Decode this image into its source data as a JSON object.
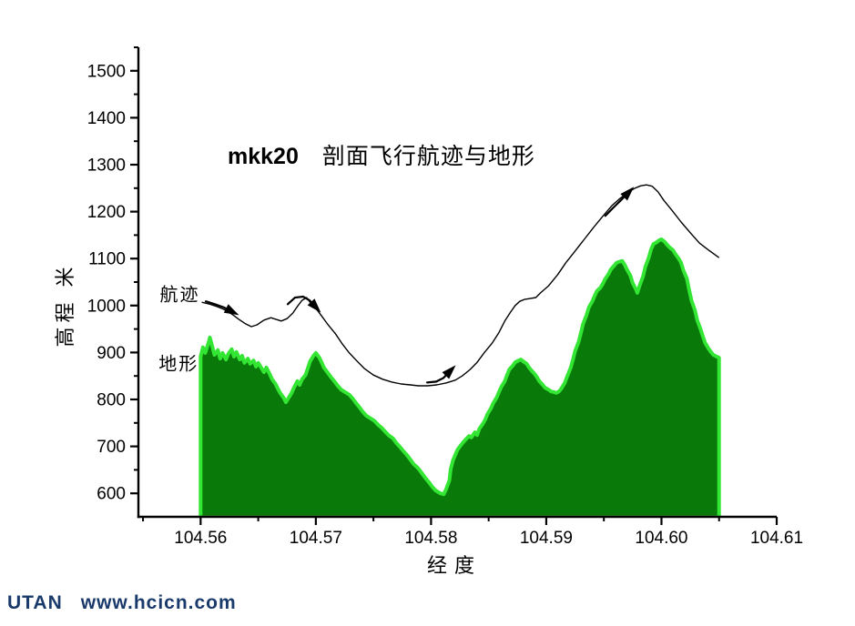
{
  "watermark": {
    "brand": "UTAN",
    "url": "www.hcicn.com",
    "color": "#1A3A6B"
  },
  "chart_data": {
    "type": "area",
    "title": "mkk20 剖面飞行航迹与地形",
    "title_parts": [
      "mkk20",
      "剖面飞行航迹与地形"
    ],
    "grid": false,
    "legend": "none (inline annotations)",
    "x_axis": {
      "label": "经度",
      "range": [
        104.5546,
        104.61
      ],
      "major_ticks": [
        104.56,
        104.57,
        104.58,
        104.59,
        104.6,
        104.61
      ],
      "tick_labels": [
        "104.56",
        "104.57",
        "104.58",
        "104.59",
        "104.60",
        "104.61"
      ],
      "minor_ticks": [
        104.555,
        104.565,
        104.575,
        104.585,
        104.595,
        104.605
      ]
    },
    "y_axis": {
      "label": "高程 米",
      "range": [
        550,
        1550
      ],
      "major_ticks": [
        600,
        700,
        800,
        900,
        1000,
        1100,
        1200,
        1300,
        1400,
        1500
      ],
      "tick_labels": [
        "600",
        "700",
        "800",
        "900",
        "1000",
        "1100",
        "1200",
        "1300",
        "1400",
        "1500"
      ],
      "minor_ticks": [
        650,
        750,
        850,
        950,
        1050,
        1150,
        1250,
        1350,
        1450,
        1550
      ]
    },
    "colors": {
      "terrain_fill": "#097A09",
      "terrain_edge": "#33E633",
      "trajectory": "#000000",
      "axis": "#000000"
    },
    "annotations": [
      {
        "text": "航迹",
        "lon": 104.5582,
        "elev": 1027
      },
      {
        "text": "地形",
        "lon": 104.5581,
        "elev": 879
      }
    ],
    "series": [
      {
        "name": "地形",
        "type": "area",
        "fill": "#097A09",
        "edge": "#33E633",
        "points": [
          [
            104.56,
            891
          ],
          [
            104.5602,
            911
          ],
          [
            104.5604,
            899
          ],
          [
            104.5607,
            922
          ],
          [
            104.5608,
            932
          ],
          [
            104.561,
            914
          ],
          [
            104.5612,
            895
          ],
          [
            104.5615,
            905
          ],
          [
            104.5617,
            887
          ],
          [
            104.5619,
            899
          ],
          [
            104.5622,
            885
          ],
          [
            104.5624,
            897
          ],
          [
            104.5627,
            907
          ],
          [
            104.5629,
            891
          ],
          [
            104.5631,
            901
          ],
          [
            104.5634,
            885
          ],
          [
            104.5636,
            893
          ],
          [
            104.5638,
            878
          ],
          [
            104.5641,
            887
          ],
          [
            104.5643,
            876
          ],
          [
            104.5646,
            883
          ],
          [
            104.5648,
            870
          ],
          [
            104.565,
            878
          ],
          [
            104.5653,
            866
          ],
          [
            104.5655,
            858
          ],
          [
            104.5657,
            868
          ],
          [
            104.566,
            854
          ],
          [
            104.5662,
            843
          ],
          [
            104.5665,
            833
          ],
          [
            104.5667,
            823
          ],
          [
            104.5669,
            814
          ],
          [
            104.5672,
            804
          ],
          [
            104.5674,
            794
          ],
          [
            104.5676,
            802
          ],
          [
            104.5679,
            814
          ],
          [
            104.5681,
            825
          ],
          [
            104.5684,
            839
          ],
          [
            104.5686,
            831
          ],
          [
            104.5688,
            843
          ],
          [
            104.5691,
            852
          ],
          [
            104.5693,
            866
          ],
          [
            104.5695,
            881
          ],
          [
            104.5698,
            893
          ],
          [
            104.57,
            899
          ],
          [
            104.5703,
            889
          ],
          [
            104.5705,
            879
          ],
          [
            104.5707,
            868
          ],
          [
            104.571,
            858
          ],
          [
            104.5713,
            848
          ],
          [
            104.5716,
            839
          ],
          [
            104.5719,
            829
          ],
          [
            104.5722,
            821
          ],
          [
            104.5725,
            816
          ],
          [
            104.5729,
            810
          ],
          [
            104.5732,
            802
          ],
          [
            104.5735,
            792
          ],
          [
            104.5738,
            783
          ],
          [
            104.5741,
            773
          ],
          [
            104.5744,
            765
          ],
          [
            104.5748,
            759
          ],
          [
            104.5751,
            754
          ],
          [
            104.5754,
            746
          ],
          [
            104.5757,
            740
          ],
          [
            104.576,
            732
          ],
          [
            104.5763,
            724
          ],
          [
            104.5767,
            717
          ],
          [
            104.577,
            707
          ],
          [
            104.5773,
            699
          ],
          [
            104.5776,
            690
          ],
          [
            104.5779,
            682
          ],
          [
            104.5782,
            672
          ],
          [
            104.5785,
            662
          ],
          [
            104.5789,
            653
          ],
          [
            104.5792,
            643
          ],
          [
            104.5795,
            633
          ],
          [
            104.5798,
            624
          ],
          [
            104.5801,
            614
          ],
          [
            104.5804,
            606
          ],
          [
            104.5808,
            600
          ],
          [
            104.5811,
            598
          ],
          [
            104.5813,
            608
          ],
          [
            104.5816,
            628
          ],
          [
            104.5817,
            651
          ],
          [
            104.5819,
            670
          ],
          [
            104.5821,
            682
          ],
          [
            104.5823,
            693
          ],
          [
            104.5826,
            703
          ],
          [
            104.5828,
            709
          ],
          [
            104.5831,
            717
          ],
          [
            104.5833,
            722
          ],
          [
            104.5835,
            719
          ],
          [
            104.5838,
            730
          ],
          [
            104.584,
            724
          ],
          [
            104.5842,
            738
          ],
          [
            104.5845,
            748
          ],
          [
            104.5847,
            757
          ],
          [
            104.5849,
            769
          ],
          [
            104.5852,
            781
          ],
          [
            104.5854,
            792
          ],
          [
            104.5857,
            804
          ],
          [
            104.5859,
            816
          ],
          [
            104.5861,
            827
          ],
          [
            104.5864,
            839
          ],
          [
            104.5866,
            852
          ],
          [
            104.5868,
            864
          ],
          [
            104.5871,
            872
          ],
          [
            104.5873,
            879
          ],
          [
            104.5876,
            883
          ],
          [
            104.5878,
            885
          ],
          [
            104.588,
            881
          ],
          [
            104.5883,
            876
          ],
          [
            104.5885,
            868
          ],
          [
            104.5887,
            862
          ],
          [
            104.589,
            854
          ],
          [
            104.5892,
            847
          ],
          [
            104.5894,
            839
          ],
          [
            104.5897,
            831
          ],
          [
            104.5899,
            825
          ],
          [
            104.5902,
            821
          ],
          [
            104.5904,
            817
          ],
          [
            104.5906,
            816
          ],
          [
            104.5909,
            814
          ],
          [
            104.5911,
            817
          ],
          [
            104.5913,
            823
          ],
          [
            104.5916,
            835
          ],
          [
            104.5918,
            848
          ],
          [
            104.5921,
            866
          ],
          [
            104.5923,
            883
          ],
          [
            104.5925,
            903
          ],
          [
            104.5928,
            922
          ],
          [
            104.593,
            941
          ],
          [
            104.5932,
            961
          ],
          [
            104.5935,
            980
          ],
          [
            104.5937,
            996
          ],
          [
            104.594,
            1009
          ],
          [
            104.5942,
            1021
          ],
          [
            104.5944,
            1031
          ],
          [
            104.5947,
            1038
          ],
          [
            104.5949,
            1046
          ],
          [
            104.5951,
            1056
          ],
          [
            104.5954,
            1067
          ],
          [
            104.5956,
            1077
          ],
          [
            104.5959,
            1085
          ],
          [
            104.5961,
            1091
          ],
          [
            104.5963,
            1093
          ],
          [
            104.5966,
            1095
          ],
          [
            104.5968,
            1087
          ],
          [
            104.597,
            1077
          ],
          [
            104.5973,
            1064
          ],
          [
            104.5975,
            1048
          ],
          [
            104.5978,
            1034
          ],
          [
            104.5979,
            1027
          ],
          [
            104.5981,
            1042
          ],
          [
            104.5984,
            1062
          ],
          [
            104.5986,
            1083
          ],
          [
            104.5989,
            1102
          ],
          [
            104.5991,
            1120
          ],
          [
            104.5993,
            1131
          ],
          [
            104.5996,
            1135
          ],
          [
            104.5998,
            1139
          ],
          [
            104.6,
            1141
          ],
          [
            104.6003,
            1135
          ],
          [
            104.6005,
            1129
          ],
          [
            104.6007,
            1124
          ],
          [
            104.601,
            1118
          ],
          [
            104.6012,
            1110
          ],
          [
            104.6015,
            1100
          ],
          [
            104.6017,
            1091
          ],
          [
            104.6019,
            1075
          ],
          [
            104.6022,
            1058
          ],
          [
            104.6024,
            1034
          ],
          [
            104.6026,
            1011
          ],
          [
            104.6029,
            990
          ],
          [
            104.6031,
            969
          ],
          [
            104.6034,
            949
          ],
          [
            104.6036,
            934
          ],
          [
            104.6038,
            920
          ],
          [
            104.6041,
            908
          ],
          [
            104.6043,
            901
          ],
          [
            104.6045,
            895
          ],
          [
            104.6048,
            891
          ],
          [
            104.605,
            889
          ]
        ]
      },
      {
        "name": "航迹",
        "type": "line",
        "color": "#000000",
        "points": [
          [
            104.5601,
            1007
          ],
          [
            104.5608,
            1003
          ],
          [
            104.5614,
            998
          ],
          [
            104.562,
            992
          ],
          [
            104.5627,
            982
          ],
          [
            104.5633,
            971
          ],
          [
            104.5639,
            961
          ],
          [
            104.5644,
            955
          ],
          [
            104.5649,
            959
          ],
          [
            104.5655,
            969
          ],
          [
            104.5661,
            974
          ],
          [
            104.5665,
            971
          ],
          [
            104.567,
            967
          ],
          [
            104.5675,
            972
          ],
          [
            104.568,
            984
          ],
          [
            104.5684,
            998
          ],
          [
            104.5688,
            1011
          ],
          [
            104.5692,
            1017
          ],
          [
            104.5695,
            1007
          ],
          [
            104.57,
            994
          ],
          [
            104.5705,
            978
          ],
          [
            104.571,
            961
          ],
          [
            104.5717,
            940
          ],
          [
            104.5723,
            918
          ],
          [
            104.5729,
            899
          ],
          [
            104.5736,
            881
          ],
          [
            104.5742,
            866
          ],
          [
            104.575,
            852
          ],
          [
            104.5758,
            843
          ],
          [
            104.5766,
            837
          ],
          [
            104.5774,
            833
          ],
          [
            104.5782,
            831
          ],
          [
            104.5789,
            829
          ],
          [
            104.5797,
            829
          ],
          [
            104.5805,
            831
          ],
          [
            104.5813,
            835
          ],
          [
            104.5821,
            841
          ],
          [
            104.5827,
            850
          ],
          [
            104.5834,
            864
          ],
          [
            104.584,
            879
          ],
          [
            104.5846,
            899
          ],
          [
            104.5853,
            920
          ],
          [
            104.5859,
            943
          ],
          [
            104.5864,
            967
          ],
          [
            104.5869,
            986
          ],
          [
            104.5873,
            1000
          ],
          [
            104.5877,
            1009
          ],
          [
            104.5881,
            1013
          ],
          [
            104.5886,
            1015
          ],
          [
            104.5891,
            1017
          ],
          [
            104.5895,
            1027
          ],
          [
            104.5902,
            1042
          ],
          [
            104.591,
            1066
          ],
          [
            104.5917,
            1091
          ],
          [
            104.5925,
            1116
          ],
          [
            104.5933,
            1141
          ],
          [
            104.5941,
            1166
          ],
          [
            104.5949,
            1190
          ],
          [
            104.5957,
            1213
          ],
          [
            104.5964,
            1228
          ],
          [
            104.597,
            1240
          ],
          [
            104.5977,
            1250
          ],
          [
            104.5982,
            1255
          ],
          [
            104.5987,
            1257
          ],
          [
            104.5992,
            1254
          ],
          [
            104.5997,
            1242
          ],
          [
            104.6002,
            1224
          ],
          [
            104.6009,
            1203
          ],
          [
            104.6017,
            1178
          ],
          [
            104.6025,
            1155
          ],
          [
            104.6033,
            1133
          ],
          [
            104.6041,
            1118
          ],
          [
            104.605,
            1102
          ]
        ]
      }
    ],
    "arrows": [
      {
        "points": [
          [
            104.56045,
            1009
          ],
          [
            104.56124,
            1003
          ],
          [
            104.56203,
            996
          ],
          [
            104.56298,
            984
          ]
        ]
      },
      {
        "points": [
          [
            104.56756,
            1003
          ],
          [
            104.56819,
            1017
          ],
          [
            104.5689,
            1019
          ],
          [
            104.56946,
            1011
          ],
          [
            104.57017,
            992
          ]
        ]
      },
      {
        "points": [
          [
            104.57966,
            836
          ],
          [
            104.58045,
            838
          ],
          [
            104.58108,
            846
          ],
          [
            104.58187,
            866
          ]
        ]
      },
      {
        "points": [
          [
            104.59513,
            1191
          ],
          [
            104.59584,
            1209
          ],
          [
            104.59647,
            1224
          ],
          [
            104.59734,
            1246
          ]
        ]
      }
    ]
  }
}
